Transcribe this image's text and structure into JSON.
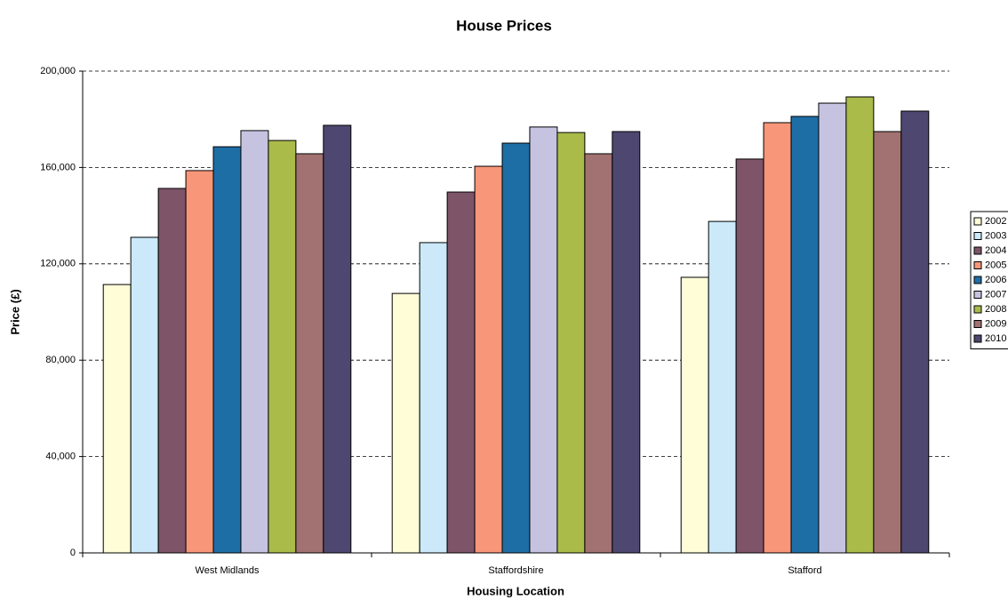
{
  "chart_data": {
    "type": "bar",
    "title": "House Prices",
    "x_label": "Housing Location",
    "y_label": "Price (£)",
    "categories": [
      "West Midlands",
      "Staffordshire",
      "Stafford"
    ],
    "series": [
      {
        "name": "2002",
        "color": "#fffcd8",
        "values": [
          111400,
          107700,
          114400
        ]
      },
      {
        "name": "2003",
        "color": "#cbe9f9",
        "values": [
          131000,
          128800,
          137600
        ]
      },
      {
        "name": "2004",
        "color": "#7e5468",
        "values": [
          151300,
          149800,
          163500
        ]
      },
      {
        "name": "2005",
        "color": "#f79679",
        "values": [
          158700,
          160500,
          178600
        ]
      },
      {
        "name": "2006",
        "color": "#1e6ea6",
        "values": [
          168600,
          170100,
          181200
        ]
      },
      {
        "name": "2007",
        "color": "#c6c3e1",
        "values": [
          175300,
          176800,
          186700
        ]
      },
      {
        "name": "2008",
        "color": "#aabb4a",
        "values": [
          171200,
          174500,
          189300
        ]
      },
      {
        "name": "2009",
        "color": "#a27171",
        "values": [
          165700,
          165700,
          174900
        ]
      },
      {
        "name": "2010",
        "color": "#4e4770",
        "values": [
          177500,
          174900,
          183400
        ]
      }
    ],
    "ylim": [
      0,
      200000
    ],
    "yticks": [
      0,
      {
        "value": 40000,
        "label": "40,000"
      },
      {
        "value": 80000,
        "label": "80,000"
      },
      {
        "value": 120000,
        "label": "120,000"
      },
      {
        "value": 160000,
        "label": "160,000"
      },
      {
        "value": 200000,
        "label": "200,000"
      }
    ],
    "grid": true,
    "legend": "right"
  }
}
